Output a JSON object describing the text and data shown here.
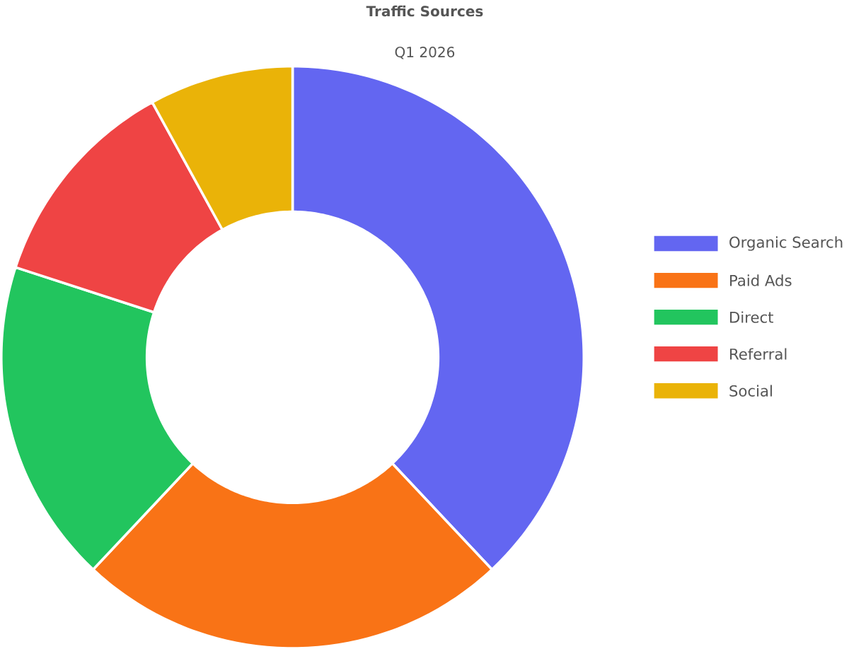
{
  "chart_data": {
    "type": "donut",
    "title": "Traffic Sources",
    "subtitle": "Q1 2026",
    "categories": [
      "Organic Search",
      "Paid Ads",
      "Direct",
      "Referral",
      "Social"
    ],
    "values": [
      38,
      24,
      18,
      12,
      8
    ],
    "colors": [
      "#6366f1",
      "#f97316",
      "#22c55e",
      "#ef4444",
      "#eab308"
    ],
    "legend": "right"
  }
}
